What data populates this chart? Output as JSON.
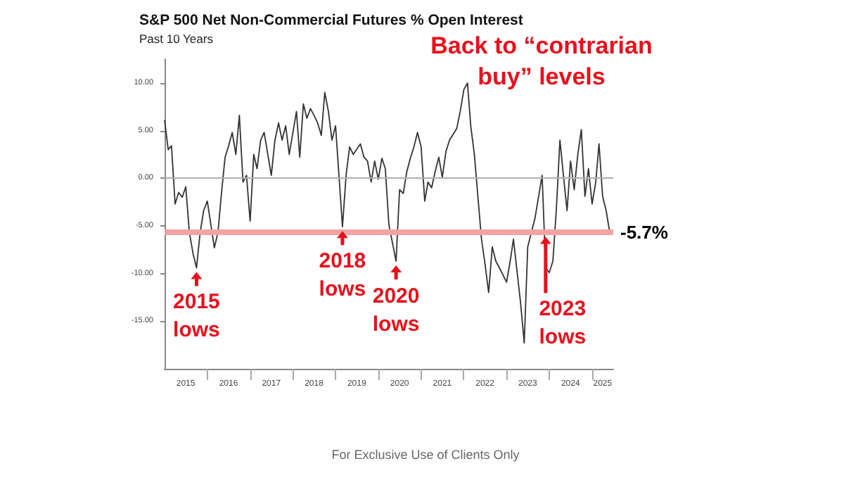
{
  "chart_data": {
    "type": "line",
    "title": "S&P 500 Net Non-Commercial Futures % Open Interest",
    "subtitle": "Past 10 Years",
    "x": [
      "2015-01",
      "2015-02",
      "2015-03",
      "2015-04",
      "2015-05",
      "2015-06",
      "2015-07",
      "2015-08",
      "2015-09",
      "2015-10",
      "2015-11",
      "2015-12",
      "2016-01",
      "2016-02",
      "2016-03",
      "2016-04",
      "2016-05",
      "2016-06",
      "2016-07",
      "2016-08",
      "2016-09",
      "2016-10",
      "2016-11",
      "2016-12",
      "2017-01",
      "2017-02",
      "2017-03",
      "2017-04",
      "2017-05",
      "2017-06",
      "2017-07",
      "2017-08",
      "2017-09",
      "2017-10",
      "2017-11",
      "2017-12",
      "2018-02",
      "2018-03",
      "2018-04",
      "2018-05",
      "2018-06",
      "2018-07",
      "2018-08",
      "2018-09",
      "2018-10",
      "2018-11",
      "2018-12",
      "2019-01",
      "2019-03",
      "2019-04",
      "2019-05",
      "2019-06",
      "2019-08",
      "2019-09",
      "2019-10",
      "2019-11",
      "2019-12",
      "2020-01",
      "2020-02",
      "2020-03",
      "2020-04",
      "2020-06",
      "2020-07",
      "2020-08",
      "2020-09",
      "2020-10",
      "2020-11",
      "2020-12",
      "2021-01",
      "2021-02",
      "2021-03",
      "2021-04",
      "2021-05",
      "2021-06",
      "2021-07",
      "2021-08",
      "2021-09",
      "2021-11",
      "2021-12",
      "2022-01",
      "2022-02",
      "2022-03",
      "2022-04",
      "2022-05",
      "2022-06",
      "2022-07",
      "2022-08",
      "2022-09",
      "2022-10",
      "2022-11",
      "2023-01",
      "2023-02",
      "2023-03",
      "2023-05",
      "2023-06",
      "2023-07",
      "2023-08",
      "2023-09",
      "2023-11",
      "2023-12",
      "2024-01",
      "2024-02",
      "2024-03",
      "2024-04",
      "2024-05",
      "2024-06",
      "2024-07",
      "2024-08",
      "2024-09",
      "2024-10",
      "2024-11",
      "2024-12",
      "2025-01",
      "2025-02",
      "2025-03",
      "2025-04",
      "2025-05",
      "2025-06"
    ],
    "series": [
      {
        "color": "#333333",
        "values": [
          6.1,
          3.0,
          3.4,
          -2.7,
          -1.5,
          -2.0,
          -0.9,
          -5.7,
          -7.9,
          -9.4,
          -5.7,
          -3.4,
          -2.4,
          -4.9,
          -7.3,
          -5.7,
          -1.6,
          2.2,
          3.4,
          4.8,
          2.5,
          6.6,
          -0.4,
          0.3,
          -4.5,
          2.5,
          1.0,
          4.0,
          4.8,
          2.5,
          0.3,
          4.0,
          5.8,
          4.0,
          5.5,
          2.5,
          7.0,
          2.2,
          7.8,
          6.3,
          7.3,
          6.6,
          5.8,
          4.5,
          9.0,
          7.0,
          4.0,
          5.5,
          -5.1,
          0.3,
          3.3,
          2.5,
          3.6,
          2.2,
          1.8,
          -0.4,
          1.8,
          -0.1,
          2.1,
          1.0,
          -4.9,
          -8.7,
          -1.2,
          -1.6,
          0.7,
          2.1,
          3.3,
          4.8,
          3.3,
          -2.4,
          -0.4,
          -1.0,
          0.7,
          2.2,
          0.1,
          2.8,
          4.0,
          5.2,
          7.0,
          9.3,
          10.0,
          5.5,
          2.5,
          -1.9,
          -6.4,
          -9.0,
          -12.0,
          -7.2,
          -8.7,
          -9.4,
          -10.9,
          -8.7,
          -6.4,
          -13.1,
          -17.3,
          -7.2,
          -5.7,
          -4.2,
          0.3,
          -9.4,
          -9.9,
          -8.7,
          -3.4,
          4.0,
          0.3,
          -3.4,
          1.8,
          -1.2,
          2.5,
          5.1,
          -1.9,
          1.0,
          -2.7,
          -0.4,
          3.6,
          -1.9,
          -3.4,
          -5.7
        ]
      }
    ],
    "xlim": [
      "2015-01",
      "2025-07"
    ],
    "xticks": [
      {
        "value": "2015-07",
        "label": "2015"
      },
      {
        "value": "2016-01",
        "label": null
      },
      {
        "value": "2016-07",
        "label": "2016"
      },
      {
        "value": "2017-01",
        "label": null
      },
      {
        "value": "2017-07",
        "label": "2017"
      },
      {
        "value": "2018-01",
        "label": null
      },
      {
        "value": "2018-07",
        "label": "2018"
      },
      {
        "value": "2019-01",
        "label": null
      },
      {
        "value": "2019-07",
        "label": "2019"
      },
      {
        "value": "2020-01",
        "label": null
      },
      {
        "value": "2020-07",
        "label": "2020"
      },
      {
        "value": "2021-01",
        "label": null
      },
      {
        "value": "2021-07",
        "label": "2021"
      },
      {
        "value": "2022-01",
        "label": null
      },
      {
        "value": "2022-07",
        "label": "2022"
      },
      {
        "value": "2023-01",
        "label": null
      },
      {
        "value": "2023-07",
        "label": "2023"
      },
      {
        "value": "2024-01",
        "label": null
      },
      {
        "value": "2024-07",
        "label": "2024"
      },
      {
        "value": "2025-01",
        "label": null
      },
      {
        "value": "2025-04",
        "label": "2025"
      }
    ],
    "ylim": [
      -20,
      12.5
    ],
    "yticks": [
      {
        "value": -15,
        "label": "-15.00"
      },
      {
        "value": -10,
        "label": "-10.00"
      },
      {
        "value": -5,
        "label": "-5.00"
      },
      {
        "value": 0,
        "label": "0.00"
      },
      {
        "value": 5,
        "label": "5.00"
      },
      {
        "value": 10,
        "label": "10.00"
      }
    ],
    "ref_lines": [
      {
        "axis": "y",
        "value": 0,
        "color": "#b0b0b0"
      },
      {
        "axis": "y",
        "value": -5.7,
        "label": "-5.7%",
        "color": "#f4a3a3"
      }
    ],
    "annotations": [
      "Back to “contrarian buy” levels",
      {
        "text": "2015 lows",
        "x": "2015-10",
        "y": -9.4
      },
      {
        "text": "2018 lows",
        "x": "2019-03",
        "y": -5.1
      },
      {
        "text": "2020 lows",
        "x": "2020-06",
        "y": -8.7
      },
      {
        "text": "2023 lows",
        "x": "2023-12",
        "y": -5.7
      },
      "For Exclusive Use of Clients Only"
    ],
    "grid": false,
    "marker": "none",
    "line_style": "solid"
  }
}
